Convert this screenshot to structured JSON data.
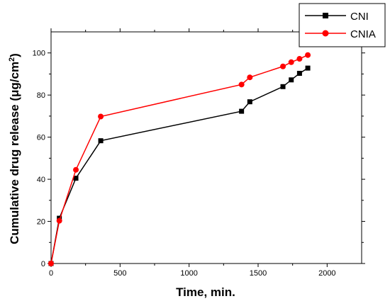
{
  "chart_data": {
    "type": "line",
    "xlabel": "Time, min.",
    "ylabel_main": "Cumulative drug release (μg/cm",
    "ylabel_sup": "2",
    "ylabel_end": ")",
    "xlim": [
      0,
      2250
    ],
    "ylim": [
      0,
      110
    ],
    "x_ticks": [
      0,
      500,
      1000,
      1500,
      2000
    ],
    "y_ticks": [
      0,
      20,
      40,
      60,
      80,
      100
    ],
    "grid": false,
    "legend_position": "top-right",
    "series": [
      {
        "name": "CNI",
        "color": "#000000",
        "marker": "square",
        "x": [
          0,
          60,
          180,
          360,
          1380,
          1440,
          1680,
          1740,
          1800,
          1860
        ],
        "y": [
          0,
          21.5,
          40.5,
          58.3,
          72.3,
          76.8,
          84.0,
          87.2,
          90.3,
          92.8
        ]
      },
      {
        "name": "CNIA",
        "color": "#ff0000",
        "marker": "circle",
        "x": [
          0,
          60,
          180,
          360,
          1380,
          1440,
          1680,
          1740,
          1800,
          1860
        ],
        "y": [
          0,
          20.3,
          44.5,
          69.8,
          85.0,
          88.4,
          93.6,
          95.6,
          97.2,
          99.0
        ]
      }
    ]
  }
}
